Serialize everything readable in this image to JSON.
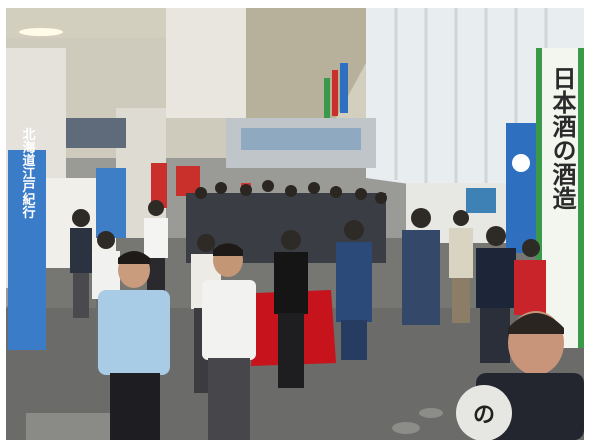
{
  "photo": {
    "kind": "photograph",
    "colors": {
      "ceiling": "#d8d4c6",
      "floor": "#6d6d6b",
      "window": "#e9eef0",
      "banner_blue": "#2f6fc0",
      "banner_red": "#c9302c",
      "banner_green": "#3a9a4a",
      "table_red": "#c7131c",
      "shirt_light_blue": "#a8cbe6"
    },
    "signs": {
      "left_banner": "北海道江戸紀行",
      "right_banner": "日本酒の酒造",
      "badge_text": "の"
    }
  }
}
